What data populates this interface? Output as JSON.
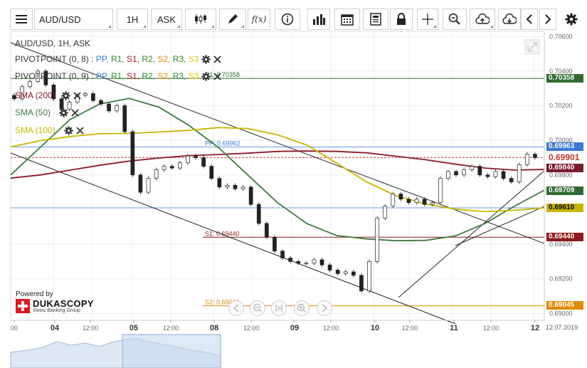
{
  "toolbar": {
    "symbol": "AUD/USD",
    "period": "1H",
    "side": "ASK",
    "fx_label": "f(x)"
  },
  "legend": {
    "title": "AUD/USD, 1H, ASK",
    "pivot1_name": "PIVOTPOINT (0, 8)",
    "pivot2_name": "PIVOTPOINT (0, 9)",
    "pivot_parts": [
      {
        "text": "PP",
        "color": "#3b78d8"
      },
      {
        "text": "R1",
        "color": "#2a8a2a"
      },
      {
        "text": "S1",
        "color": "#b01e1e"
      },
      {
        "text": "R2",
        "color": "#2a8a2a"
      },
      {
        "text": "S2",
        "color": "#e08a00"
      },
      {
        "text": "R3",
        "color": "#2a8a2a"
      },
      {
        "text": "S3",
        "color": "#e0c800"
      }
    ],
    "sma200": "SMA (200)",
    "sma50": "SMA (50)",
    "sma100": "SMA (100)",
    "sma200_color": "#8b1a2a",
    "sma50_color": "#3f7a3f",
    "sma100_color": "#c9b600"
  },
  "level_labels": {
    "r1": "R1: 0.70358",
    "pp": "PP: 0.69962",
    "s1": "S1: 0.69440",
    "s2": "S2: 0.69044"
  },
  "branding": {
    "powered_by": "Powered by",
    "name": "DUKASCOPY",
    "tagline": "Swiss Banking Group"
  },
  "y_axis": {
    "ticks": [
      "0.70600",
      "0.70400",
      "0.70200",
      "0.70000",
      "0.69800",
      "0.69400",
      "0.69200",
      "0.69000"
    ],
    "tags": [
      {
        "text": "0.70358",
        "bg": "#2f6b2f",
        "fg": "#ffffff"
      },
      {
        "text": "0.69963",
        "bg": "#3b78d8",
        "fg": "#ffffff"
      },
      {
        "text": "0.69901",
        "bg": "#ffffff",
        "fg": "#c0392b"
      },
      {
        "text": "0.69840",
        "bg": "#7a1a2a",
        "fg": "#ffffff"
      },
      {
        "text": "0.69709",
        "bg": "#2f6b2f",
        "fg": "#ffffff"
      },
      {
        "text": "0.69610",
        "bg": "#c9b600",
        "fg": "#000000"
      },
      {
        "text": "0.69440",
        "bg": "#8b1a1a",
        "fg": "#ffffff"
      },
      {
        "text": "0.69045",
        "bg": "#e08a00",
        "fg": "#ffffff"
      }
    ]
  },
  "x_axis": {
    "labels": [
      "00",
      "04",
      "12:00",
      "05",
      "12:00",
      "08",
      "12:00",
      "09",
      "12:00",
      "10",
      "12:00",
      "11",
      "12:00",
      "12"
    ],
    "date": "12.07.2019"
  },
  "chart_data": {
    "type": "candlestick",
    "ylim": [
      0.6896,
      0.7063
    ],
    "series": [
      {
        "name": "SMA (200)",
        "color": "#8b1a2a",
        "values": [
          0.69782,
          0.698,
          0.69828,
          0.69856,
          0.6988,
          0.69898,
          0.69912,
          0.69918,
          0.69926,
          0.69936,
          0.69938,
          0.69936,
          0.69928,
          0.69908,
          0.69888,
          0.69862,
          0.6984,
          0.69828,
          0.69832
        ]
      },
      {
        "name": "SMA (50)",
        "color": "#3f7a3f",
        "values": [
          0.698,
          0.6996,
          0.7012,
          0.7021,
          0.70242,
          0.70192,
          0.70088,
          0.6996,
          0.698,
          0.6964,
          0.69518,
          0.6945,
          0.6943,
          0.6942,
          0.69422,
          0.69448,
          0.6952,
          0.6962,
          0.69712
        ]
      },
      {
        "name": "SMA (100)",
        "color": "#c9b600",
        "values": [
          0.69962,
          0.69998,
          0.70022,
          0.70038,
          0.7004,
          0.70048,
          0.70058,
          0.70074,
          0.70068,
          0.70032,
          0.69972,
          0.69868,
          0.6976,
          0.6968,
          0.69632,
          0.69602,
          0.69588,
          0.69596,
          0.6961
        ]
      }
    ],
    "levels": [
      {
        "name": "R1",
        "value": 0.70358,
        "color": "#2f6b2f"
      },
      {
        "name": "PP",
        "value": 0.69962,
        "color": "#3b78d8"
      },
      {
        "name": "PP",
        "value": 0.6961,
        "color": "#3b78d8"
      },
      {
        "name": "S1",
        "value": 0.6944,
        "color": "#8b1a1a"
      },
      {
        "name": "S2",
        "value": 0.69044,
        "color": "#e08a00"
      },
      {
        "name": "last",
        "value": 0.69901,
        "color": "#c0392b"
      }
    ],
    "candles": [
      0.7024,
      0.7031,
      0.7034,
      0.704,
      0.7032,
      0.7024,
      0.7018,
      0.7022,
      0.7026,
      0.7027,
      0.7023,
      0.7021,
      0.7017,
      0.702,
      0.7005,
      0.698,
      0.697,
      0.6978,
      0.6983,
      0.6985,
      0.6984,
      0.6987,
      0.6991,
      0.699,
      0.6985,
      0.6978,
      0.6973,
      0.6974,
      0.6972,
      0.6973,
      0.6963,
      0.6952,
      0.6944,
      0.6936,
      0.6932,
      0.693,
      0.6929,
      0.6929,
      0.6931,
      0.6928,
      0.6925,
      0.6923,
      0.6924,
      0.6922,
      0.6913,
      0.693,
      0.6955,
      0.6962,
      0.6969,
      0.6966,
      0.6964,
      0.6966,
      0.6963,
      0.6964,
      0.6978,
      0.6982,
      0.698,
      0.6983,
      0.6985,
      0.698,
      0.6979,
      0.6982,
      0.6978,
      0.6976,
      0.6986,
      0.6992,
      0.699
    ]
  }
}
